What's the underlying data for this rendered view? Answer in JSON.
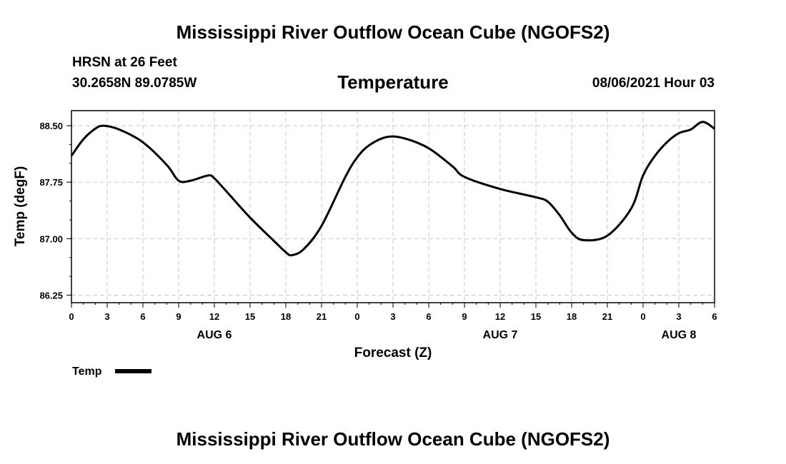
{
  "header": {
    "title": "Mississippi River Outflow Ocean Cube (NGOFS2)",
    "station": "HRSN at 26 Feet",
    "coords": "30.2658N  89.0785W",
    "datetime": "08/06/2021 Hour 03"
  },
  "footer": {
    "title": "Mississippi River Outflow Ocean Cube (NGOFS2)"
  },
  "chart_data": {
    "type": "line",
    "title": "Temperature",
    "xlabel": "Forecast (Z)",
    "ylabel": "Temp (degF)",
    "xlim": [
      0,
      54
    ],
    "ylim": [
      86.15,
      88.7
    ],
    "grid": true,
    "x_ticks": [
      0,
      3,
      6,
      9,
      12,
      15,
      18,
      21,
      24,
      27,
      30,
      33,
      36,
      39,
      42,
      45,
      48,
      51,
      54
    ],
    "x_tick_labels": [
      "0",
      "3",
      "6",
      "9",
      "12",
      "15",
      "18",
      "21",
      "0",
      "3",
      "6",
      "9",
      "12",
      "15",
      "18",
      "21",
      "0",
      "3",
      "6"
    ],
    "y_ticks": [
      86.25,
      87.0,
      87.75,
      88.5
    ],
    "y_tick_labels": [
      "86.25",
      "87.00",
      "87.75",
      "88.50"
    ],
    "day_labels": [
      {
        "x": 12,
        "text": "AUG 6"
      },
      {
        "x": 36,
        "text": "AUG 7"
      },
      {
        "x": 51,
        "text": "AUG 8"
      }
    ],
    "legend": {
      "label": "Temp",
      "position": "bottom-left"
    },
    "series": [
      {
        "name": "Temp",
        "color": "#000000",
        "x": [
          0,
          1,
          2,
          2.7,
          4,
          6,
          8,
          9,
          10,
          11.5,
          12,
          13,
          15,
          17,
          18,
          18.5,
          19.5,
          21,
          23,
          24,
          25,
          26.5,
          28,
          30,
          32,
          33,
          36,
          39,
          40,
          41,
          42,
          43,
          45,
          47,
          48,
          49,
          50,
          51,
          52,
          53,
          54
        ],
        "values": [
          88.1,
          88.32,
          88.46,
          88.5,
          88.45,
          88.28,
          87.98,
          87.77,
          87.77,
          87.84,
          87.8,
          87.63,
          87.28,
          86.97,
          86.82,
          86.78,
          86.86,
          87.17,
          87.82,
          88.08,
          88.24,
          88.35,
          88.33,
          88.2,
          87.96,
          87.82,
          87.66,
          87.55,
          87.49,
          87.31,
          87.08,
          86.98,
          87.04,
          87.4,
          87.84,
          88.1,
          88.28,
          88.4,
          88.45,
          88.55,
          88.46
        ]
      }
    ]
  }
}
